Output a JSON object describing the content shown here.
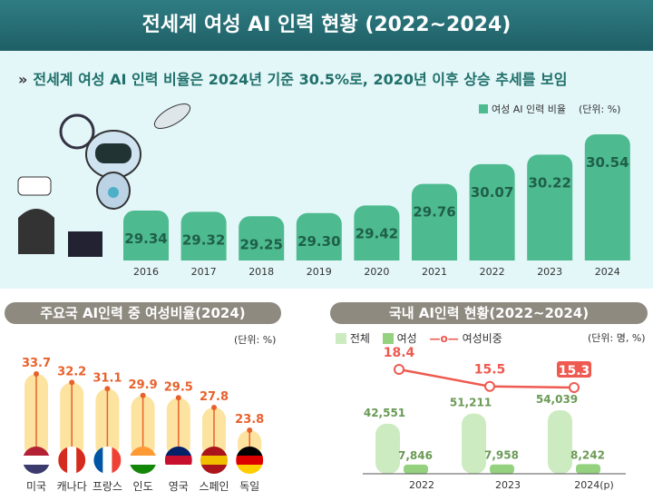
{
  "title": "전세계 여성 AI 인력 현황 (2022~2024)",
  "headline": "전세계 여성 AI 인력 비율은 2024년 기준 30.5%로, 2020년 이후 상승 추세를 보임",
  "headline_marker": "»",
  "colors": {
    "bar_top": "#4dbb8f",
    "country_bar": "#fde3a0",
    "country_line": "#e8612c",
    "total": "#cdebc0",
    "female": "#94d27f",
    "ratio_line": "#ee5a50"
  },
  "chart_data": [
    {
      "type": "bar",
      "legend": "여성 AI 인력 비율",
      "unit": "(단위: %)",
      "categories": [
        "2016",
        "2017",
        "2018",
        "2019",
        "2020",
        "2021",
        "2022",
        "2023",
        "2024"
      ],
      "values": [
        29.34,
        29.32,
        29.25,
        29.3,
        29.42,
        29.76,
        30.07,
        30.22,
        30.54
      ],
      "labels": [
        "29.34",
        "29.32",
        "29.25",
        "29.30",
        "29.42",
        "29.76",
        "30.07",
        "30.22",
        "30.54"
      ]
    },
    {
      "type": "bar",
      "title": "주요국 AI인력 중 여성비율(2024)",
      "unit": "(단위: %)",
      "categories": [
        "미국",
        "캐나다",
        "프랑스",
        "인도",
        "영국",
        "스페인",
        "독일"
      ],
      "flags": [
        "us-flag",
        "canada-flag",
        "france-flag",
        "india-flag",
        "uk-flag",
        "spain-flag",
        "germany-flag"
      ],
      "values": [
        33.7,
        32.2,
        31.1,
        29.9,
        29.5,
        27.8,
        23.8
      ],
      "labels": [
        "33.7",
        "32.2",
        "31.1",
        "29.9",
        "29.5",
        "27.8",
        "23.8"
      ]
    },
    {
      "type": "bar+line",
      "title": "국내 AI인력 현황(2022~2024)",
      "unit": "(단위: 명, %)",
      "categories": [
        "2022",
        "2023",
        "2024(p)"
      ],
      "series": [
        {
          "name": "전체",
          "values": [
            42551,
            51211,
            54039
          ],
          "labels": [
            "42,551",
            "51,211",
            "54,039"
          ]
        },
        {
          "name": "여성",
          "values": [
            7846,
            7958,
            8242
          ],
          "labels": [
            "7,846",
            "7,958",
            "8,242"
          ]
        },
        {
          "name": "여성비중",
          "type": "line",
          "values": [
            18.4,
            15.5,
            15.3
          ],
          "labels": [
            "18.4",
            "15.5",
            "15.3"
          ]
        }
      ]
    }
  ]
}
